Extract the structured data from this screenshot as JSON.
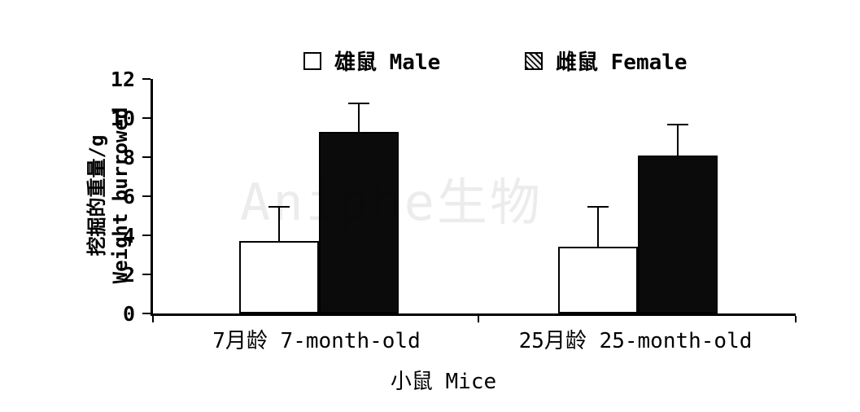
{
  "watermark": "Aniphe生物",
  "chart_data": {
    "type": "bar",
    "title": "",
    "categories": [
      "7月龄 7-month-old",
      "25月龄 25-month-old"
    ],
    "series": [
      {
        "name": "雄鼠 Male",
        "values": [
          3.7,
          3.4
        ],
        "errors": [
          1.8,
          2.1
        ],
        "fill": "#ffffff"
      },
      {
        "name": "雌鼠 Female",
        "values": [
          9.3,
          8.1
        ],
        "errors": [
          1.5,
          1.6
        ],
        "fill": "#0b0b0b"
      }
    ],
    "xlabel": "小鼠 Mice",
    "ylabel": "挖掘的重量/g Weight burrowed",
    "ylabel_lines": [
      "挖掘的重量/g",
      "Weight burrowed"
    ],
    "ylim": [
      0,
      12
    ],
    "yticks": [
      0,
      2,
      4,
      6,
      8,
      10,
      12
    ],
    "grid": false,
    "legend_position": "top"
  }
}
